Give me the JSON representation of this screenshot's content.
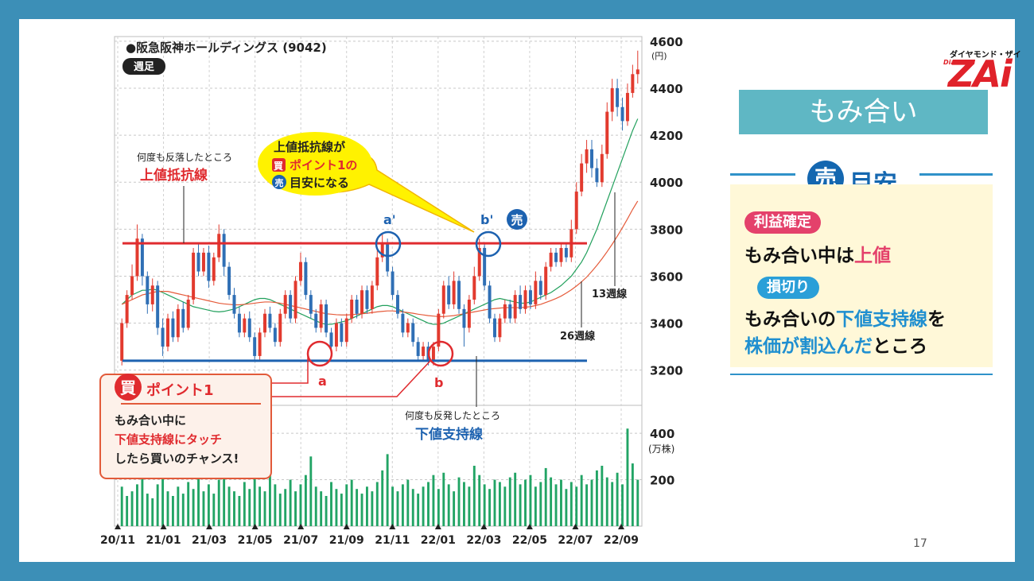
{
  "chart_data": [
    {
      "type": "candlestick",
      "title": "●阪急阪神ホールディングス (9042)",
      "subtitle": "週足",
      "y_unit": "(円)",
      "y_ticks": [
        3200,
        3400,
        3600,
        3800,
        4000,
        4200,
        4400,
        4600
      ],
      "ylim": [
        3050,
        4620
      ],
      "x_ticks": [
        "20/11",
        "21/01",
        "21/03",
        "21/05",
        "21/07",
        "21/09",
        "21/11",
        "22/01",
        "22/03",
        "22/05",
        "22/07",
        "22/09"
      ],
      "resistance": 3740,
      "support": 3240,
      "series": [
        {
          "name": "13週線",
          "values": [
            3480,
            3500,
            3520,
            3530,
            3540,
            3540,
            3545,
            3540,
            3530,
            3520,
            3510,
            3500,
            3490,
            3480,
            3470,
            3465,
            3460,
            3455,
            3450,
            3448,
            3450,
            3455,
            3460,
            3470,
            3480,
            3490,
            3500,
            3505,
            3505,
            3500,
            3490,
            3480,
            3470,
            3460,
            3450,
            3440,
            3430,
            3420,
            3410,
            3400,
            3395,
            3395,
            3400,
            3405,
            3410,
            3420,
            3430,
            3440,
            3450,
            3460,
            3470,
            3475,
            3475,
            3470,
            3460,
            3450,
            3440,
            3430,
            3420,
            3410,
            3400,
            3395,
            3395,
            3400,
            3410,
            3420,
            3430,
            3440,
            3450,
            3460,
            3470,
            3480,
            3490,
            3500,
            3505,
            3500,
            3495,
            3490,
            3485,
            3485,
            3490,
            3500,
            3510,
            3520,
            3530,
            3545,
            3560,
            3580,
            3600,
            3630,
            3660,
            3700,
            3750,
            3800,
            3860,
            3920,
            3980,
            4040,
            4100,
            4160,
            4220,
            4270
          ]
        },
        {
          "name": "26週線",
          "values": [
            3480,
            3490,
            3500,
            3510,
            3520,
            3525,
            3530,
            3535,
            3535,
            3535,
            3530,
            3525,
            3520,
            3515,
            3510,
            3505,
            3500,
            3495,
            3490,
            3485,
            3482,
            3480,
            3478,
            3478,
            3480,
            3482,
            3485,
            3488,
            3490,
            3490,
            3488,
            3485,
            3480,
            3475,
            3470,
            3465,
            3460,
            3455,
            3450,
            3445,
            3440,
            3438,
            3436,
            3435,
            3435,
            3436,
            3438,
            3440,
            3442,
            3445,
            3448,
            3450,
            3452,
            3452,
            3450,
            3448,
            3445,
            3442,
            3438,
            3435,
            3432,
            3430,
            3428,
            3428,
            3430,
            3432,
            3436,
            3440,
            3444,
            3448,
            3452,
            3456,
            3460,
            3462,
            3464,
            3466,
            3466,
            3466,
            3466,
            3468,
            3470,
            3475,
            3480,
            3488,
            3496,
            3505,
            3515,
            3528,
            3542,
            3558,
            3576,
            3596,
            3620,
            3646,
            3674,
            3704,
            3736,
            3770,
            3806,
            3844,
            3884,
            3920
          ]
        }
      ],
      "candles": [
        {
          "o": 3240,
          "c": 3400,
          "h": 3420,
          "l": 3220
        },
        {
          "o": 3400,
          "c": 3520,
          "h": 3540,
          "l": 3380
        },
        {
          "o": 3520,
          "c": 3600,
          "h": 3650,
          "l": 3500
        },
        {
          "o": 3600,
          "c": 3760,
          "h": 3820,
          "l": 3580
        },
        {
          "o": 3760,
          "c": 3600,
          "h": 3780,
          "l": 3560
        },
        {
          "o": 3600,
          "c": 3480,
          "h": 3620,
          "l": 3440
        },
        {
          "o": 3480,
          "c": 3560,
          "h": 3590,
          "l": 3450
        },
        {
          "o": 3560,
          "c": 3380,
          "h": 3580,
          "l": 3350
        },
        {
          "o": 3380,
          "c": 3300,
          "h": 3420,
          "l": 3260
        },
        {
          "o": 3300,
          "c": 3420,
          "h": 3440,
          "l": 3280
        },
        {
          "o": 3420,
          "c": 3340,
          "h": 3450,
          "l": 3320
        },
        {
          "o": 3340,
          "c": 3460,
          "h": 3480,
          "l": 3320
        },
        {
          "o": 3460,
          "c": 3380,
          "h": 3490,
          "l": 3360
        },
        {
          "o": 3380,
          "c": 3500,
          "h": 3520,
          "l": 3370
        },
        {
          "o": 3500,
          "c": 3700,
          "h": 3720,
          "l": 3480
        },
        {
          "o": 3700,
          "c": 3620,
          "h": 3740,
          "l": 3600
        },
        {
          "o": 3620,
          "c": 3700,
          "h": 3720,
          "l": 3600
        },
        {
          "o": 3700,
          "c": 3580,
          "h": 3730,
          "l": 3550
        },
        {
          "o": 3580,
          "c": 3680,
          "h": 3700,
          "l": 3560
        },
        {
          "o": 3680,
          "c": 3780,
          "h": 3820,
          "l": 3660
        },
        {
          "o": 3780,
          "c": 3640,
          "h": 3800,
          "l": 3600
        },
        {
          "o": 3640,
          "c": 3520,
          "h": 3660,
          "l": 3500
        },
        {
          "o": 3520,
          "c": 3440,
          "h": 3550,
          "l": 3420
        },
        {
          "o": 3440,
          "c": 3360,
          "h": 3470,
          "l": 3340
        },
        {
          "o": 3360,
          "c": 3420,
          "h": 3440,
          "l": 3340
        },
        {
          "o": 3420,
          "c": 3340,
          "h": 3450,
          "l": 3320
        },
        {
          "o": 3340,
          "c": 3260,
          "h": 3360,
          "l": 3240
        },
        {
          "o": 3260,
          "c": 3360,
          "h": 3380,
          "l": 3240
        },
        {
          "o": 3360,
          "c": 3440,
          "h": 3460,
          "l": 3340
        },
        {
          "o": 3440,
          "c": 3380,
          "h": 3470,
          "l": 3360
        },
        {
          "o": 3380,
          "c": 3320,
          "h": 3400,
          "l": 3300
        },
        {
          "o": 3320,
          "c": 3440,
          "h": 3460,
          "l": 3300
        },
        {
          "o": 3440,
          "c": 3520,
          "h": 3540,
          "l": 3420
        },
        {
          "o": 3520,
          "c": 3420,
          "h": 3540,
          "l": 3400
        },
        {
          "o": 3420,
          "c": 3580,
          "h": 3600,
          "l": 3400
        },
        {
          "o": 3580,
          "c": 3660,
          "h": 3700,
          "l": 3560
        },
        {
          "o": 3660,
          "c": 3520,
          "h": 3680,
          "l": 3500
        },
        {
          "o": 3520,
          "c": 3440,
          "h": 3540,
          "l": 3420
        },
        {
          "o": 3440,
          "c": 3380,
          "h": 3460,
          "l": 3360
        },
        {
          "o": 3380,
          "c": 3480,
          "h": 3500,
          "l": 3360
        },
        {
          "o": 3480,
          "c": 3360,
          "h": 3500,
          "l": 3340
        },
        {
          "o": 3360,
          "c": 3300,
          "h": 3380,
          "l": 3260
        },
        {
          "o": 3300,
          "c": 3400,
          "h": 3420,
          "l": 3280
        },
        {
          "o": 3400,
          "c": 3320,
          "h": 3420,
          "l": 3300
        },
        {
          "o": 3320,
          "c": 3420,
          "h": 3440,
          "l": 3300
        },
        {
          "o": 3420,
          "c": 3500,
          "h": 3520,
          "l": 3400
        },
        {
          "o": 3500,
          "c": 3440,
          "h": 3520,
          "l": 3420
        },
        {
          "o": 3440,
          "c": 3540,
          "h": 3560,
          "l": 3420
        },
        {
          "o": 3540,
          "c": 3460,
          "h": 3560,
          "l": 3440
        },
        {
          "o": 3460,
          "c": 3560,
          "h": 3580,
          "l": 3440
        },
        {
          "o": 3560,
          "c": 3680,
          "h": 3720,
          "l": 3540
        },
        {
          "o": 3680,
          "c": 3740,
          "h": 3780,
          "l": 3660
        },
        {
          "o": 3740,
          "c": 3620,
          "h": 3760,
          "l": 3600
        },
        {
          "o": 3620,
          "c": 3520,
          "h": 3640,
          "l": 3500
        },
        {
          "o": 3520,
          "c": 3440,
          "h": 3540,
          "l": 3420
        },
        {
          "o": 3440,
          "c": 3360,
          "h": 3460,
          "l": 3340
        },
        {
          "o": 3360,
          "c": 3400,
          "h": 3420,
          "l": 3340
        },
        {
          "o": 3400,
          "c": 3320,
          "h": 3420,
          "l": 3300
        },
        {
          "o": 3320,
          "c": 3260,
          "h": 3340,
          "l": 3240
        },
        {
          "o": 3260,
          "c": 3300,
          "h": 3320,
          "l": 3240
        },
        {
          "o": 3300,
          "c": 3240,
          "h": 3320,
          "l": 3220
        },
        {
          "o": 3240,
          "c": 3300,
          "h": 3320,
          "l": 3220
        },
        {
          "o": 3300,
          "c": 3440,
          "h": 3460,
          "l": 3280
        },
        {
          "o": 3440,
          "c": 3560,
          "h": 3580,
          "l": 3420
        },
        {
          "o": 3560,
          "c": 3480,
          "h": 3600,
          "l": 3460
        },
        {
          "o": 3480,
          "c": 3580,
          "h": 3620,
          "l": 3460
        },
        {
          "o": 3580,
          "c": 3460,
          "h": 3600,
          "l": 3440
        },
        {
          "o": 3460,
          "c": 3380,
          "h": 3480,
          "l": 3300
        },
        {
          "o": 3380,
          "c": 3500,
          "h": 3520,
          "l": 3360
        },
        {
          "o": 3500,
          "c": 3600,
          "h": 3640,
          "l": 3480
        },
        {
          "o": 3600,
          "c": 3720,
          "h": 3760,
          "l": 3580
        },
        {
          "o": 3720,
          "c": 3560,
          "h": 3740,
          "l": 3540
        },
        {
          "o": 3560,
          "c": 3420,
          "h": 3580,
          "l": 3400
        },
        {
          "o": 3420,
          "c": 3340,
          "h": 3440,
          "l": 3320
        },
        {
          "o": 3340,
          "c": 3420,
          "h": 3440,
          "l": 3320
        },
        {
          "o": 3420,
          "c": 3480,
          "h": 3500,
          "l": 3400
        },
        {
          "o": 3480,
          "c": 3420,
          "h": 3500,
          "l": 3400
        },
        {
          "o": 3420,
          "c": 3520,
          "h": 3540,
          "l": 3400
        },
        {
          "o": 3520,
          "c": 3460,
          "h": 3560,
          "l": 3440
        },
        {
          "o": 3460,
          "c": 3540,
          "h": 3560,
          "l": 3440
        },
        {
          "o": 3540,
          "c": 3480,
          "h": 3560,
          "l": 3460
        },
        {
          "o": 3480,
          "c": 3580,
          "h": 3620,
          "l": 3460
        },
        {
          "o": 3580,
          "c": 3520,
          "h": 3600,
          "l": 3500
        },
        {
          "o": 3520,
          "c": 3640,
          "h": 3660,
          "l": 3500
        },
        {
          "o": 3640,
          "c": 3700,
          "h": 3720,
          "l": 3620
        },
        {
          "o": 3700,
          "c": 3660,
          "h": 3720,
          "l": 3640
        },
        {
          "o": 3660,
          "c": 3720,
          "h": 3740,
          "l": 3640
        },
        {
          "o": 3720,
          "c": 3680,
          "h": 3740,
          "l": 3660
        },
        {
          "o": 3680,
          "c": 3800,
          "h": 3840,
          "l": 3660
        },
        {
          "o": 3800,
          "c": 3960,
          "h": 4000,
          "l": 3780
        },
        {
          "o": 3960,
          "c": 4080,
          "h": 4120,
          "l": 3940
        },
        {
          "o": 4080,
          "c": 4140,
          "h": 4180,
          "l": 4040
        },
        {
          "o": 4140,
          "c": 4060,
          "h": 4180,
          "l": 4020
        },
        {
          "o": 4060,
          "c": 4000,
          "h": 4100,
          "l": 3980
        },
        {
          "o": 4000,
          "c": 4120,
          "h": 4160,
          "l": 3980
        },
        {
          "o": 4120,
          "c": 4300,
          "h": 4340,
          "l": 4100
        },
        {
          "o": 4300,
          "c": 4400,
          "h": 4440,
          "l": 4260
        },
        {
          "o": 4400,
          "c": 4320,
          "h": 4440,
          "l": 4280
        },
        {
          "o": 4320,
          "c": 4260,
          "h": 4360,
          "l": 4220
        },
        {
          "o": 4260,
          "c": 4380,
          "h": 4420,
          "l": 4240
        },
        {
          "o": 4380,
          "c": 4460,
          "h": 4500,
          "l": 4360
        },
        {
          "o": 4460,
          "c": 4480,
          "h": 4560,
          "l": 4420
        }
      ]
    },
    {
      "type": "bar",
      "title": "",
      "y_unit": "(万株)",
      "y_ticks": [
        200,
        400
      ],
      "ylim": [
        0,
        520
      ],
      "values": [
        170,
        130,
        150,
        180,
        220,
        140,
        120,
        180,
        260,
        150,
        130,
        170,
        140,
        190,
        160,
        210,
        150,
        180,
        140,
        200,
        240,
        170,
        150,
        130,
        190,
        160,
        210,
        170,
        150,
        230,
        180,
        140,
        160,
        200,
        150,
        180,
        220,
        300,
        170,
        150,
        130,
        190,
        160,
        140,
        180,
        200,
        160,
        140,
        170,
        150,
        190,
        240,
        310,
        170,
        150,
        180,
        200,
        160,
        140,
        170,
        190,
        220,
        160,
        230,
        180,
        150,
        210,
        190,
        170,
        260,
        220,
        180,
        160,
        200,
        190,
        170,
        210,
        230,
        180,
        200,
        220,
        170,
        190,
        250,
        210,
        180,
        200,
        160,
        190,
        170,
        220,
        180,
        200,
        240,
        260,
        210,
        190,
        230,
        180,
        420,
        270,
        200
      ]
    }
  ],
  "annotations": {
    "resistance_note": "何度も反落したところ",
    "resistance_label": "上値抵抗線",
    "support_note": "何度も反発したところ",
    "support_label": "下値支持線",
    "ma13_label": "13週線",
    "ma26_label": "26週線",
    "point_a": "a",
    "point_b": "b",
    "point_a2": "a'",
    "point_b2": "b'",
    "sell_mark": "売",
    "callout_line1": "上値抵抗線が",
    "callout_buy": "買",
    "callout_line2": "ポイント1の",
    "callout_sell": "売",
    "callout_line3": "目安になる",
    "buy_mark": "買",
    "buy_title": "ポイント1",
    "buy_line1": "もみ合い中に",
    "buy_line2": "下値支持線にタッチ",
    "buy_line3": "したら買いのチャンス!"
  },
  "sidebar": {
    "title": "もみ合い",
    "sell_circle": "売",
    "sell_heading": "目安",
    "profit_badge": "利益確定",
    "profit_text_prefix": "もみ合い中は",
    "profit_text_highlight": "上値",
    "loss_badge": "損切り",
    "loss_text_prefix": "もみ合いの",
    "loss_text_highlight1": "下値支持線",
    "loss_text_mid": "を",
    "loss_text_highlight2": "株価が割込んだ",
    "loss_text_suffix": "ところ"
  },
  "brand": {
    "top": "ダイヤモンド・ザイ",
    "small": "Diamond",
    "main": "ZAi"
  },
  "page_number": "17",
  "colors": {
    "resistance": "#e02b2f",
    "support": "#1d62b0",
    "bull": "#e23a2e",
    "bear": "#2f6fb5",
    "ma13": "#21a05c",
    "ma26": "#e55b3a",
    "volume": "#22a465",
    "callout": "#fff200"
  }
}
